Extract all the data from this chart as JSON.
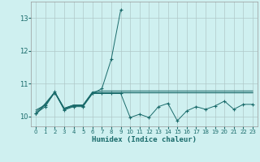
{
  "xlabel": "Humidex (Indice chaleur)",
  "bg_color": "#cff0f0",
  "grid_color": "#b0c8c8",
  "line_color": "#1a6b6b",
  "xlim": [
    -0.5,
    23.5
  ],
  "ylim": [
    9.7,
    13.5
  ],
  "yticks": [
    10,
    11,
    12,
    13
  ],
  "xticks": [
    0,
    1,
    2,
    3,
    4,
    5,
    6,
    7,
    8,
    9,
    10,
    11,
    12,
    13,
    14,
    15,
    16,
    17,
    18,
    19,
    20,
    21,
    22,
    23
  ],
  "series": [
    {
      "x": [
        0,
        1,
        2,
        3,
        4,
        5,
        6,
        7,
        8,
        9
      ],
      "y": [
        10.1,
        10.3,
        10.75,
        10.2,
        10.3,
        10.3,
        10.7,
        10.85,
        11.75,
        13.25
      ],
      "marker": "+"
    },
    {
      "x": [
        0,
        1,
        2,
        3,
        4,
        5,
        6,
        7,
        8,
        9,
        10,
        11,
        12,
        13,
        14,
        15,
        16,
        17,
        18,
        19,
        20,
        21,
        22,
        23
      ],
      "y": [
        10.05,
        10.4,
        10.75,
        10.25,
        10.35,
        10.35,
        10.75,
        10.78,
        10.78,
        10.78,
        10.78,
        10.78,
        10.78,
        10.78,
        10.78,
        10.78,
        10.78,
        10.78,
        10.78,
        10.78,
        10.78,
        10.78,
        10.78,
        10.78
      ],
      "marker": null
    },
    {
      "x": [
        0,
        1,
        2,
        3,
        4,
        5,
        6,
        7,
        8,
        9,
        10,
        11,
        12,
        13,
        14,
        15,
        16,
        17,
        18,
        19,
        20,
        21,
        22,
        23
      ],
      "y": [
        10.2,
        10.35,
        10.75,
        10.25,
        10.35,
        10.35,
        10.72,
        10.72,
        10.72,
        10.72,
        10.72,
        10.72,
        10.72,
        10.72,
        10.72,
        10.72,
        10.72,
        10.72,
        10.72,
        10.72,
        10.72,
        10.72,
        10.72,
        10.72
      ],
      "marker": null
    },
    {
      "x": [
        0,
        1,
        2,
        3,
        4,
        5,
        6,
        7,
        8,
        9,
        10,
        11,
        12,
        13,
        14,
        15,
        16,
        17,
        18,
        19,
        20,
        21,
        22,
        23
      ],
      "y": [
        10.15,
        10.38,
        10.73,
        10.23,
        10.33,
        10.33,
        10.73,
        10.73,
        10.73,
        10.73,
        10.73,
        10.73,
        10.73,
        10.73,
        10.73,
        10.73,
        10.73,
        10.73,
        10.73,
        10.73,
        10.73,
        10.73,
        10.73,
        10.73
      ],
      "marker": null
    },
    {
      "x": [
        0,
        1,
        2,
        3,
        4,
        5,
        6,
        7,
        8,
        9,
        10,
        11,
        12,
        13,
        14,
        15,
        16,
        17,
        18,
        19,
        20,
        21,
        22,
        23
      ],
      "y": [
        10.1,
        10.35,
        10.72,
        10.22,
        10.32,
        10.32,
        10.7,
        10.7,
        10.7,
        10.7,
        9.97,
        10.07,
        9.97,
        10.3,
        10.4,
        9.87,
        10.17,
        10.3,
        10.22,
        10.32,
        10.47,
        10.22,
        10.37,
        10.37
      ],
      "marker": "+"
    }
  ]
}
